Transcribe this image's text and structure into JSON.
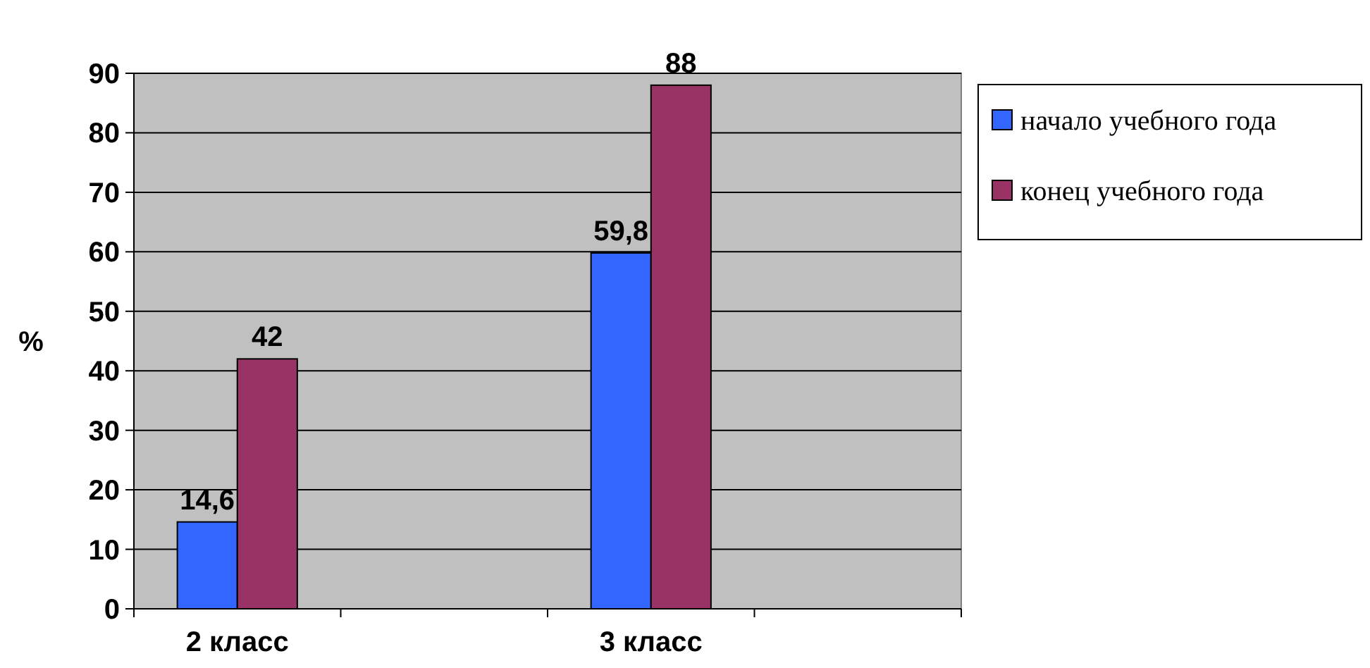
{
  "chart_data": {
    "type": "bar",
    "ylabel": "%",
    "categories": [
      "2 класс",
      null,
      "3 класс",
      null
    ],
    "series": [
      {
        "name": "начало учебного года",
        "color": "#3366ff",
        "values": [
          14.6,
          null,
          59.8,
          null
        ],
        "value_labels": [
          "14,6",
          null,
          "59,8",
          null
        ]
      },
      {
        "name": "конец учебного года",
        "color": "#993366",
        "values": [
          42,
          null,
          88,
          null
        ],
        "value_labels": [
          "42",
          null,
          "88",
          null
        ]
      }
    ],
    "ylim": [
      0,
      90
    ],
    "yticks": [
      0,
      10,
      20,
      30,
      40,
      50,
      60,
      70,
      80,
      90
    ],
    "grid": "y",
    "legend": "right"
  }
}
